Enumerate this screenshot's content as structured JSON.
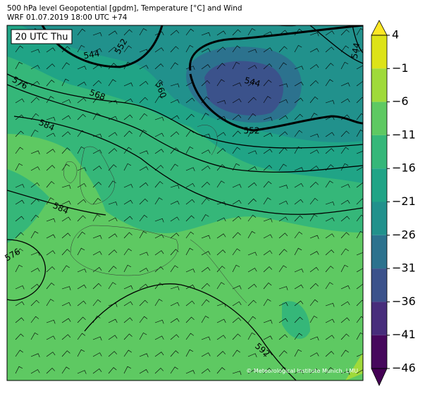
{
  "header": {
    "title": "500 hPa level Geopotential [gpdm], Temperature [°C] and Wind",
    "subtitle": "WRF 01.07.2019 18:00 UTC +74"
  },
  "map": {
    "time_label": "20 UTC Thu",
    "contour_labels": [
      "544",
      "552",
      "576",
      "568",
      "560",
      "584",
      "544",
      "552",
      "544",
      "584",
      "576",
      "592"
    ],
    "credit": "© Meteorological Institute Munich, LMU"
  },
  "colorbar": {
    "ticks": [
      {
        "value": 4,
        "label": "4"
      },
      {
        "value": -1,
        "label": "−1"
      },
      {
        "value": -6,
        "label": "−6"
      },
      {
        "value": -11,
        "label": "−11"
      },
      {
        "value": -16,
        "label": "−16"
      },
      {
        "value": -21,
        "label": "−21"
      },
      {
        "value": -26,
        "label": "−26"
      },
      {
        "value": -31,
        "label": "−31"
      },
      {
        "value": -36,
        "label": "−36"
      },
      {
        "value": -41,
        "label": "−41"
      },
      {
        "value": -46,
        "label": "−46"
      }
    ],
    "colors": [
      "#dde318",
      "#9fda3a",
      "#5ec962",
      "#35b779",
      "#20a486",
      "#21918c",
      "#2c728e",
      "#3b528b",
      "#472d7b",
      "#46085c"
    ],
    "over_color": "#fde725",
    "under_color": "#440154"
  }
}
